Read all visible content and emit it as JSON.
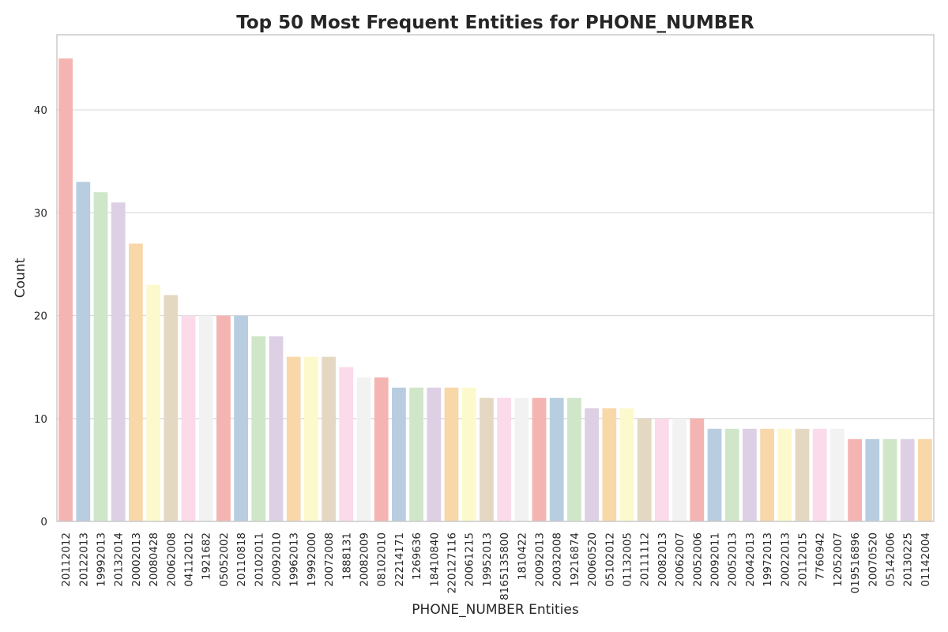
{
  "chart_data": {
    "type": "bar",
    "title": "Top 50 Most Frequent Entities for PHONE_NUMBER",
    "xlabel": "PHONE_NUMBER Entities",
    "ylabel": "Count",
    "ylim": [
      0,
      47.3
    ],
    "yticks": [
      0,
      10,
      20,
      30,
      40
    ],
    "grid": "horizontal",
    "categories": [
      "20112012",
      "20122013",
      "19992013",
      "20132014",
      "20002013",
      "20080428",
      "20062008",
      "04112012",
      "1921682",
      "05052002",
      "20110818",
      "20102011",
      "20092010",
      "19962013",
      "19992000",
      "20072008",
      "1888131",
      "20082009",
      "08102010",
      "22214171",
      "1269636",
      "18410840",
      "220127116",
      "20061215",
      "19952013",
      "8165135800",
      "1810422",
      "20092013",
      "20032008",
      "19216874",
      "20060520",
      "05102012",
      "01132005",
      "20111112",
      "20082013",
      "20062007",
      "20052006",
      "20092011",
      "20052013",
      "20042013",
      "19972013",
      "20022013",
      "20112015",
      "7760942",
      "12052007",
      "019516896",
      "20070520",
      "05142006",
      "20130225",
      "01142004"
    ],
    "values": [
      45,
      33,
      32,
      31,
      27,
      23,
      22,
      20,
      20,
      20,
      20,
      18,
      18,
      16,
      16,
      16,
      15,
      14,
      14,
      13,
      13,
      13,
      13,
      13,
      12,
      12,
      12,
      12,
      12,
      12,
      11,
      11,
      11,
      10,
      10,
      10,
      10,
      9,
      9,
      9,
      9,
      9,
      9,
      9,
      9,
      8,
      8,
      8,
      8,
      8
    ],
    "palette": [
      "#f4b5b2",
      "#b8cde0",
      "#cfe6c9",
      "#ddd0e4",
      "#f8d7a9",
      "#fcf9cd",
      "#e5d8c3",
      "#fbdaea",
      "#f2f2f2"
    ]
  }
}
